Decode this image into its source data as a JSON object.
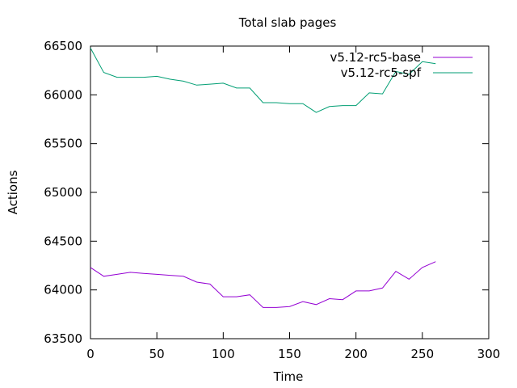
{
  "chart_data": {
    "type": "line",
    "title": "Total slab pages",
    "xlabel": "Time",
    "ylabel": "Actions",
    "xlim": [
      0,
      300
    ],
    "ylim": [
      63500,
      66500
    ],
    "xticks": [
      0,
      50,
      100,
      150,
      200,
      250,
      300
    ],
    "yticks": [
      63500,
      64000,
      64500,
      65000,
      65500,
      66000,
      66500
    ],
    "grid": false,
    "legend": "top-right",
    "series": [
      {
        "name": "v5.12-rc5-base",
        "color": "#9400d3",
        "x": [
          0,
          10,
          20,
          30,
          40,
          50,
          60,
          70,
          80,
          90,
          100,
          110,
          120,
          130,
          140,
          150,
          160,
          170,
          180,
          190,
          200,
          210,
          220,
          230,
          240,
          250,
          260
        ],
        "y": [
          64230,
          64140,
          64160,
          64180,
          64170,
          64160,
          64150,
          64140,
          64080,
          64060,
          63930,
          63930,
          63950,
          63820,
          63820,
          63830,
          63880,
          63850,
          63910,
          63900,
          63990,
          63990,
          64020,
          64190,
          64110,
          64230,
          64290
        ]
      },
      {
        "name": "v5.12-rc5-spf",
        "color": "#009e73",
        "x": [
          0,
          10,
          20,
          30,
          40,
          50,
          60,
          70,
          80,
          90,
          100,
          110,
          120,
          130,
          140,
          150,
          160,
          170,
          180,
          190,
          200,
          210,
          220,
          230,
          240,
          250,
          260
        ],
        "y": [
          66480,
          66230,
          66180,
          66180,
          66180,
          66190,
          66160,
          66140,
          66100,
          66110,
          66120,
          66070,
          66070,
          65920,
          65920,
          65910,
          65910,
          65820,
          65880,
          65890,
          65890,
          66020,
          66010,
          66240,
          66210,
          66340,
          66320
        ]
      }
    ]
  }
}
